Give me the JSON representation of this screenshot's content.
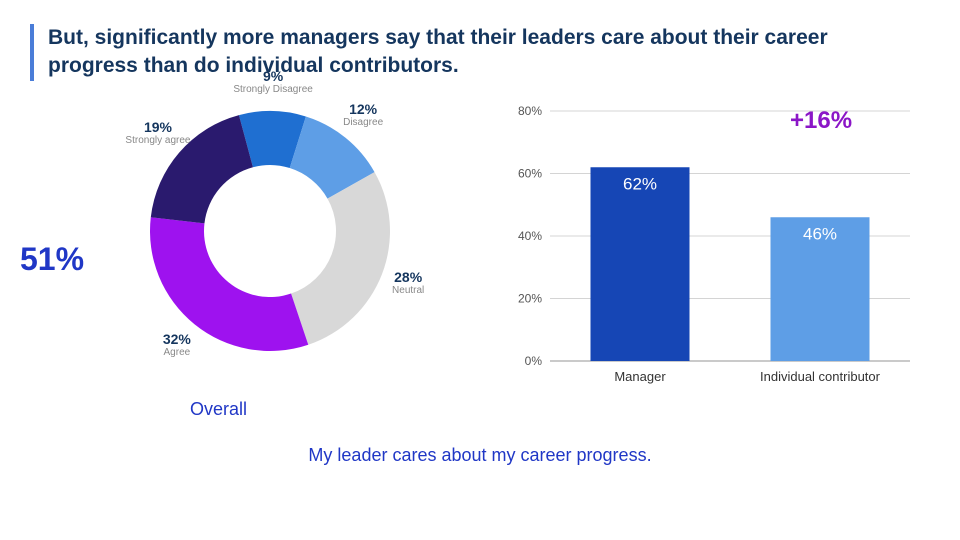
{
  "title": "But, significantly more managers say that their leaders care about their career progress than do individual contributors.",
  "footer": "My leader cares about my career progress.",
  "donut": {
    "callout": "51%",
    "callout_color": "#2037c6",
    "overall_label": "Overall",
    "inner_ratio": 0.55,
    "segments": [
      {
        "label": "Strongly Disagree",
        "pct": 9,
        "color": "#1f6fd1"
      },
      {
        "label": "Disagree",
        "pct": 12,
        "color": "#5e9ee6"
      },
      {
        "label": "Neutral",
        "pct": 28,
        "color": "#d8d8d8"
      },
      {
        "label": "Agree",
        "pct": 32,
        "color": "#9e12ef"
      },
      {
        "label": "Strongly agree",
        "pct": 19,
        "color": "#2a1a6e"
      }
    ],
    "start_angle_deg": -105
  },
  "bars": {
    "ylim": [
      0,
      80
    ],
    "ytick_step": 20,
    "diff_label": "+16%",
    "diff_color": "#8b16c7",
    "axis_color": "#aaaaaa",
    "tick_label_color": "#555555",
    "value_label_color": "#ffffff",
    "cat_label_color": "#333333",
    "series": [
      {
        "label": "Manager",
        "value": 62,
        "color": "#1646b5"
      },
      {
        "label": "Individual contributor",
        "value": 46,
        "color": "#5e9ee6"
      }
    ]
  }
}
